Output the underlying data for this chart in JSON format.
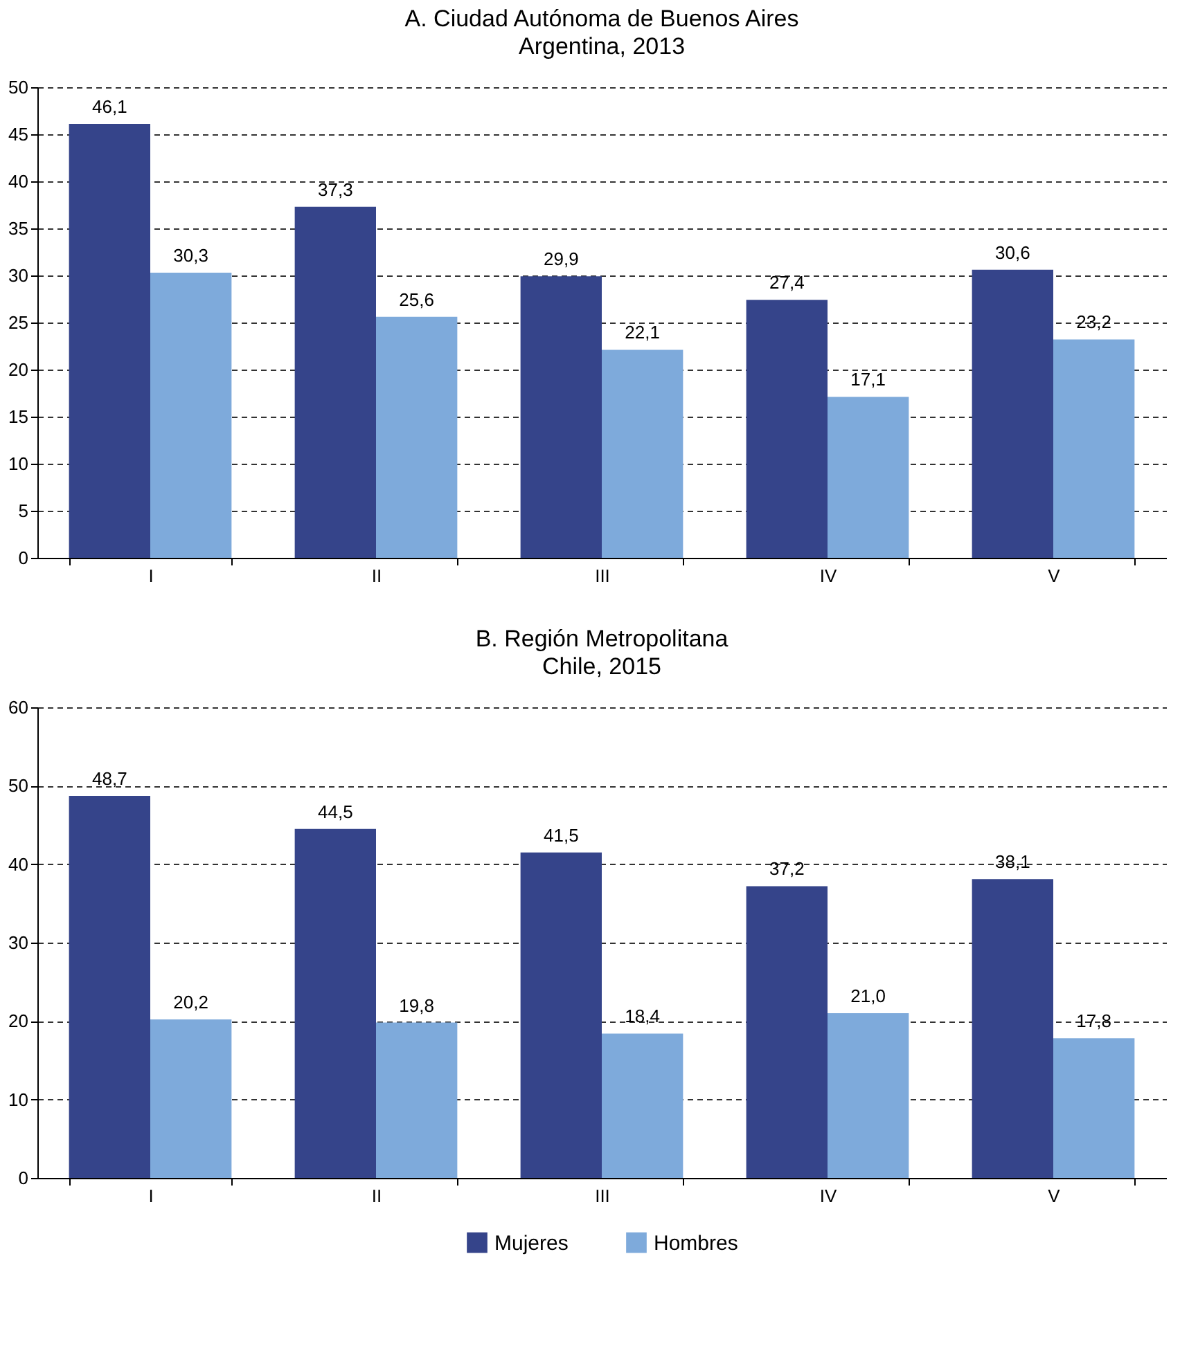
{
  "chart_data": [
    {
      "type": "bar",
      "title": "A. Ciudad Autónoma de Buenos Aires",
      "subtitle": "Argentina, 2013",
      "categories": [
        "I",
        "II",
        "III",
        "IV",
        "V"
      ],
      "series": [
        {
          "name": "Mujeres",
          "color": "#35448a",
          "values": [
            46.1,
            37.3,
            29.9,
            27.4,
            30.6
          ],
          "value_labels": [
            "46,1",
            "37,3",
            "29,9",
            "27,4",
            "30,6"
          ]
        },
        {
          "name": "Hombres",
          "color": "#7eaadb",
          "values": [
            30.3,
            25.6,
            22.1,
            17.1,
            23.2
          ],
          "value_labels": [
            "30,3",
            "25,6",
            "22,1",
            "17,1",
            "23,2"
          ]
        }
      ],
      "ylim": [
        0,
        50
      ],
      "yticks": [
        0,
        5,
        10,
        15,
        20,
        25,
        30,
        35,
        40,
        45,
        50
      ],
      "grid": "y",
      "legend": "bottom"
    },
    {
      "type": "bar",
      "title": "B. Región Metropolitana",
      "subtitle": "Chile, 2015",
      "categories": [
        "I",
        "II",
        "III",
        "IV",
        "V"
      ],
      "series": [
        {
          "name": "Mujeres",
          "color": "#35448a",
          "values": [
            48.7,
            44.5,
            41.5,
            37.2,
            38.1
          ],
          "value_labels": [
            "48,7",
            "44,5",
            "41,5",
            "37,2",
            "38,1"
          ]
        },
        {
          "name": "Hombres",
          "color": "#7eaadb",
          "values": [
            20.2,
            19.8,
            18.4,
            21.0,
            17.8
          ],
          "value_labels": [
            "20,2",
            "19,8",
            "18,4",
            "21,0",
            "17,8"
          ]
        }
      ],
      "ylim": [
        0,
        60
      ],
      "yticks": [
        0,
        10,
        20,
        30,
        40,
        50,
        60
      ],
      "grid": "y",
      "legend": "bottom"
    }
  ]
}
